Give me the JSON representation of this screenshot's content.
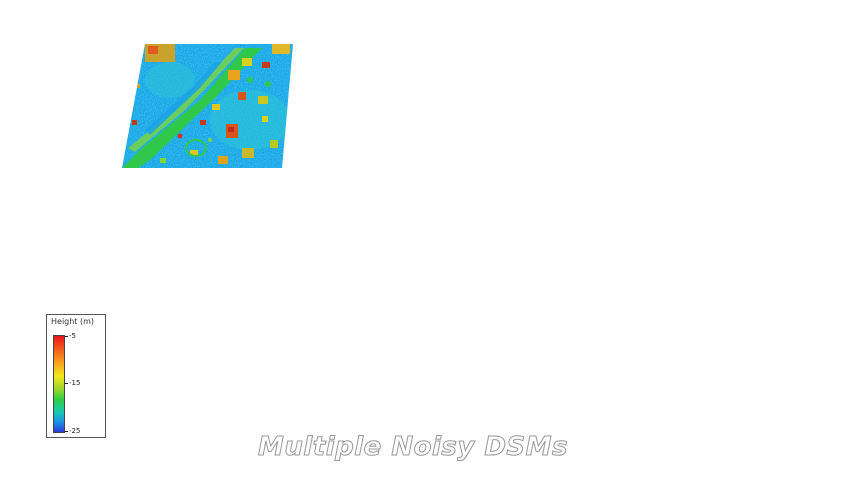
{
  "caption": "Multiple Noisy DSMs",
  "legend": {
    "title": "Height (m)",
    "ticks": [
      "-5",
      "-15",
      "-25"
    ],
    "colors": [
      "#e8121a",
      "#f8a21c",
      "#f3e81c",
      "#2fcf3f",
      "#15c8b8",
      "#1e8fe6",
      "#2a3ad6"
    ]
  },
  "dsm": {
    "ground_color": "#1aa3e6",
    "vegetation_color": "#2fc84a",
    "building_color": "#c8a22a"
  }
}
